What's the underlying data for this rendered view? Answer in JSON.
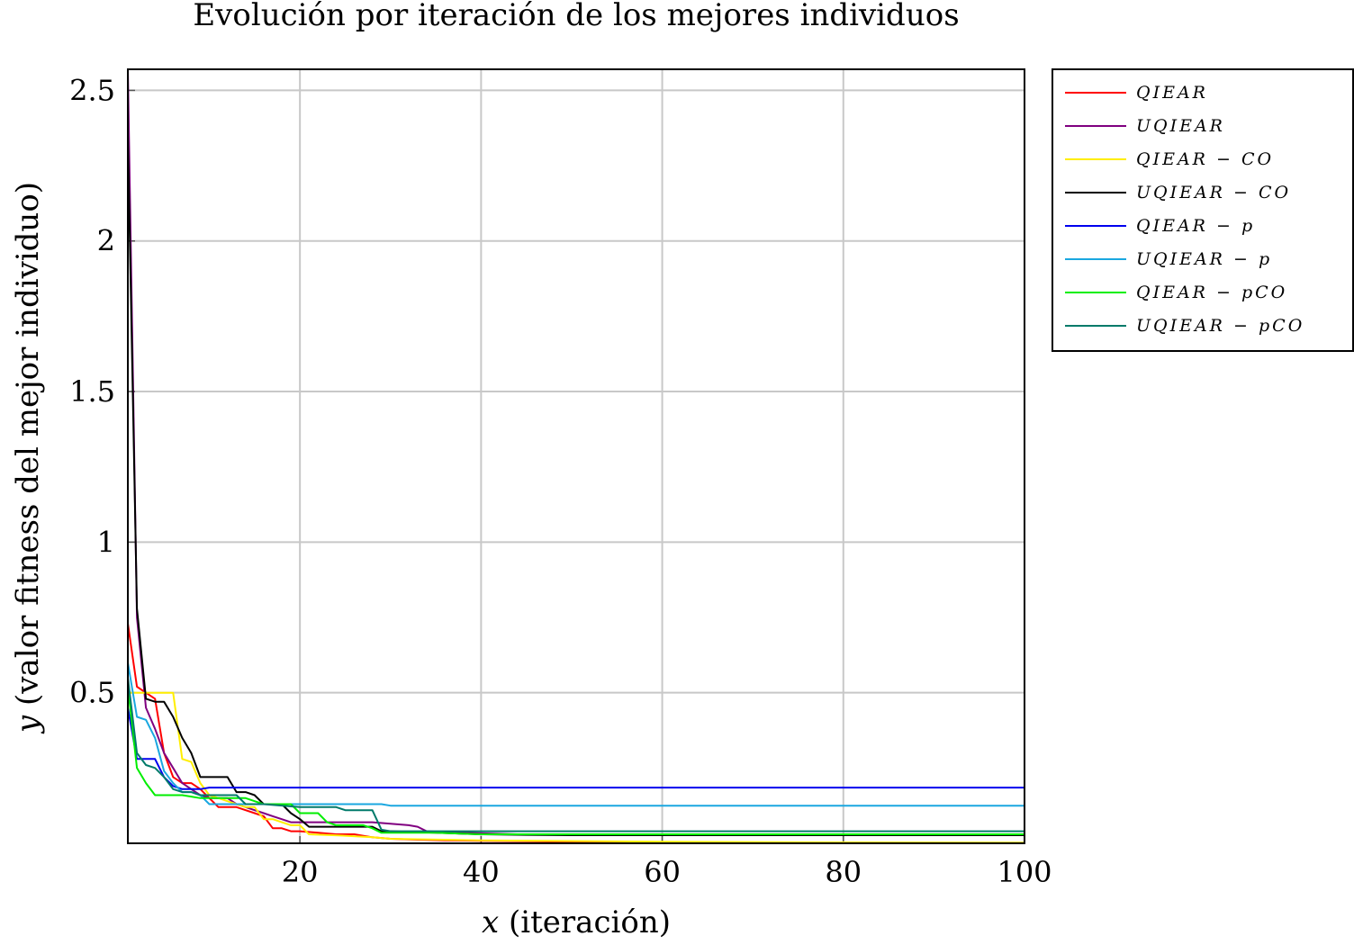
{
  "chart_data": {
    "type": "line",
    "title": "Evolución por iteración de los mejores individuos",
    "xlabel": "x (iteración)",
    "xlabel_var": "x",
    "xlabel_rest": " (iteración)",
    "ylabel": "y (valor fitness del mejor individuo)",
    "ylabel_var": "y",
    "ylabel_rest": " (valor fitness del mejor individuo)",
    "xlim": [
      1,
      100
    ],
    "ylim": [
      0,
      2.57
    ],
    "xticks": [
      20,
      40,
      60,
      80,
      100
    ],
    "yticks": [
      0.5,
      1,
      1.5,
      2,
      2.5
    ],
    "xtick_labels": [
      "20",
      "40",
      "60",
      "80",
      "100"
    ],
    "ytick_labels": [
      "0.5",
      "1",
      "1.5",
      "2",
      "2.5"
    ],
    "grid": true,
    "legend_position": "outside-right-top",
    "series": [
      {
        "name": "QIEAR",
        "color": "#ff0000",
        "points": [
          [
            1,
            0.73
          ],
          [
            2,
            0.52
          ],
          [
            3,
            0.5
          ],
          [
            4,
            0.48
          ],
          [
            5,
            0.3
          ],
          [
            6,
            0.22
          ],
          [
            7,
            0.2
          ],
          [
            8,
            0.2
          ],
          [
            9,
            0.18
          ],
          [
            10,
            0.15
          ],
          [
            11,
            0.12
          ],
          [
            12,
            0.12
          ],
          [
            13,
            0.12
          ],
          [
            14,
            0.11
          ],
          [
            15,
            0.1
          ],
          [
            16,
            0.09
          ],
          [
            17,
            0.05
          ],
          [
            18,
            0.05
          ],
          [
            19,
            0.04
          ],
          [
            20,
            0.04
          ],
          [
            22,
            0.035
          ],
          [
            24,
            0.03
          ],
          [
            26,
            0.03
          ],
          [
            28,
            0.02
          ],
          [
            30,
            0.015
          ],
          [
            33,
            0.012
          ],
          [
            36,
            0.01
          ],
          [
            40,
            0.008
          ],
          [
            50,
            0.005
          ],
          [
            60,
            0.003
          ],
          [
            70,
            0.002
          ],
          [
            80,
            0.002
          ],
          [
            90,
            0.001
          ],
          [
            100,
            0.001
          ]
        ]
      },
      {
        "name": "UQIEAR",
        "color": "#800080",
        "points": [
          [
            1,
            2.57
          ],
          [
            2,
            0.75
          ],
          [
            3,
            0.45
          ],
          [
            4,
            0.38
          ],
          [
            5,
            0.3
          ],
          [
            6,
            0.25
          ],
          [
            7,
            0.2
          ],
          [
            8,
            0.18
          ],
          [
            9,
            0.16
          ],
          [
            10,
            0.15
          ],
          [
            11,
            0.15
          ],
          [
            12,
            0.15
          ],
          [
            13,
            0.13
          ],
          [
            14,
            0.12
          ],
          [
            15,
            0.11
          ],
          [
            16,
            0.1
          ],
          [
            17,
            0.09
          ],
          [
            18,
            0.08
          ],
          [
            19,
            0.07
          ],
          [
            20,
            0.07
          ],
          [
            25,
            0.07
          ],
          [
            28,
            0.07
          ],
          [
            30,
            0.065
          ],
          [
            32,
            0.06
          ],
          [
            33,
            0.055
          ],
          [
            34,
            0.04
          ],
          [
            38,
            0.035
          ],
          [
            44,
            0.03
          ],
          [
            50,
            0.028
          ],
          [
            60,
            0.027
          ],
          [
            70,
            0.027
          ],
          [
            80,
            0.027
          ],
          [
            90,
            0.027
          ],
          [
            100,
            0.027
          ]
        ]
      },
      {
        "name": "QIEAR − CO",
        "color": "#ffee00",
        "points": [
          [
            1,
            0.5
          ],
          [
            2,
            0.5
          ],
          [
            3,
            0.5
          ],
          [
            4,
            0.5
          ],
          [
            5,
            0.5
          ],
          [
            6,
            0.5
          ],
          [
            7,
            0.28
          ],
          [
            8,
            0.27
          ],
          [
            9,
            0.2
          ],
          [
            10,
            0.16
          ],
          [
            11,
            0.15
          ],
          [
            12,
            0.14
          ],
          [
            13,
            0.13
          ],
          [
            14,
            0.12
          ],
          [
            15,
            0.12
          ],
          [
            16,
            0.08
          ],
          [
            17,
            0.08
          ],
          [
            18,
            0.07
          ],
          [
            19,
            0.06
          ],
          [
            20,
            0.06
          ],
          [
            21,
            0.03
          ],
          [
            25,
            0.025
          ],
          [
            28,
            0.02
          ],
          [
            30,
            0.015
          ],
          [
            40,
            0.01
          ],
          [
            60,
            0.005
          ],
          [
            80,
            0.003
          ],
          [
            100,
            0.002
          ]
        ]
      },
      {
        "name": "UQIEAR − CO",
        "color": "#000000",
        "points": [
          [
            1,
            2.35
          ],
          [
            2,
            0.78
          ],
          [
            3,
            0.48
          ],
          [
            4,
            0.47
          ],
          [
            5,
            0.47
          ],
          [
            6,
            0.42
          ],
          [
            7,
            0.35
          ],
          [
            8,
            0.3
          ],
          [
            9,
            0.22
          ],
          [
            10,
            0.22
          ],
          [
            11,
            0.22
          ],
          [
            12,
            0.22
          ],
          [
            13,
            0.17
          ],
          [
            14,
            0.17
          ],
          [
            15,
            0.16
          ],
          [
            16,
            0.13
          ],
          [
            17,
            0.13
          ],
          [
            18,
            0.13
          ],
          [
            19,
            0.1
          ],
          [
            20,
            0.08
          ],
          [
            21,
            0.055
          ],
          [
            22,
            0.055
          ],
          [
            25,
            0.055
          ],
          [
            28,
            0.055
          ],
          [
            29,
            0.04
          ],
          [
            30,
            0.04
          ],
          [
            35,
            0.035
          ],
          [
            40,
            0.03
          ],
          [
            45,
            0.028
          ],
          [
            50,
            0.027
          ],
          [
            60,
            0.027
          ],
          [
            80,
            0.027
          ],
          [
            100,
            0.027
          ]
        ]
      },
      {
        "name": "QIEAR − p",
        "color": "#0000ee",
        "points": [
          [
            1,
            0.45
          ],
          [
            2,
            0.28
          ],
          [
            3,
            0.28
          ],
          [
            4,
            0.28
          ],
          [
            5,
            0.22
          ],
          [
            6,
            0.19
          ],
          [
            7,
            0.18
          ],
          [
            8,
            0.18
          ],
          [
            9,
            0.18
          ],
          [
            10,
            0.185
          ],
          [
            15,
            0.185
          ],
          [
            20,
            0.185
          ],
          [
            30,
            0.185
          ],
          [
            40,
            0.185
          ],
          [
            60,
            0.185
          ],
          [
            80,
            0.185
          ],
          [
            100,
            0.185
          ]
        ]
      },
      {
        "name": "UQIEAR − p",
        "color": "#1aa7e0",
        "points": [
          [
            1,
            0.6
          ],
          [
            2,
            0.42
          ],
          [
            3,
            0.41
          ],
          [
            4,
            0.35
          ],
          [
            5,
            0.24
          ],
          [
            6,
            0.2
          ],
          [
            7,
            0.17
          ],
          [
            8,
            0.17
          ],
          [
            9,
            0.16
          ],
          [
            10,
            0.13
          ],
          [
            11,
            0.13
          ],
          [
            12,
            0.13
          ],
          [
            15,
            0.13
          ],
          [
            20,
            0.13
          ],
          [
            25,
            0.13
          ],
          [
            29,
            0.13
          ],
          [
            30,
            0.125
          ],
          [
            40,
            0.125
          ],
          [
            60,
            0.125
          ],
          [
            80,
            0.125
          ],
          [
            100,
            0.125
          ]
        ]
      },
      {
        "name": "QIEAR − pCO",
        "color": "#00ee00",
        "points": [
          [
            1,
            0.52
          ],
          [
            2,
            0.25
          ],
          [
            3,
            0.2
          ],
          [
            4,
            0.16
          ],
          [
            5,
            0.16
          ],
          [
            6,
            0.16
          ],
          [
            7,
            0.16
          ],
          [
            8,
            0.155
          ],
          [
            9,
            0.15
          ],
          [
            10,
            0.15
          ],
          [
            12,
            0.15
          ],
          [
            14,
            0.15
          ],
          [
            15,
            0.14
          ],
          [
            16,
            0.13
          ],
          [
            19,
            0.13
          ],
          [
            20,
            0.1
          ],
          [
            22,
            0.1
          ],
          [
            23,
            0.07
          ],
          [
            24,
            0.06
          ],
          [
            27,
            0.06
          ],
          [
            28,
            0.05
          ],
          [
            29,
            0.035
          ],
          [
            35,
            0.035
          ],
          [
            40,
            0.03
          ],
          [
            50,
            0.03
          ],
          [
            60,
            0.03
          ],
          [
            80,
            0.03
          ],
          [
            100,
            0.03
          ]
        ]
      },
      {
        "name": "UQIEAR − pCO",
        "color": "#007a6a",
        "points": [
          [
            1,
            0.55
          ],
          [
            2,
            0.3
          ],
          [
            3,
            0.26
          ],
          [
            4,
            0.25
          ],
          [
            5,
            0.22
          ],
          [
            6,
            0.18
          ],
          [
            7,
            0.17
          ],
          [
            8,
            0.17
          ],
          [
            9,
            0.16
          ],
          [
            10,
            0.16
          ],
          [
            13,
            0.16
          ],
          [
            14,
            0.13
          ],
          [
            16,
            0.13
          ],
          [
            20,
            0.12
          ],
          [
            24,
            0.12
          ],
          [
            25,
            0.11
          ],
          [
            27,
            0.11
          ],
          [
            28,
            0.11
          ],
          [
            29,
            0.045
          ],
          [
            30,
            0.04
          ],
          [
            40,
            0.04
          ],
          [
            60,
            0.04
          ],
          [
            80,
            0.04
          ],
          [
            100,
            0.04
          ]
        ]
      }
    ]
  }
}
